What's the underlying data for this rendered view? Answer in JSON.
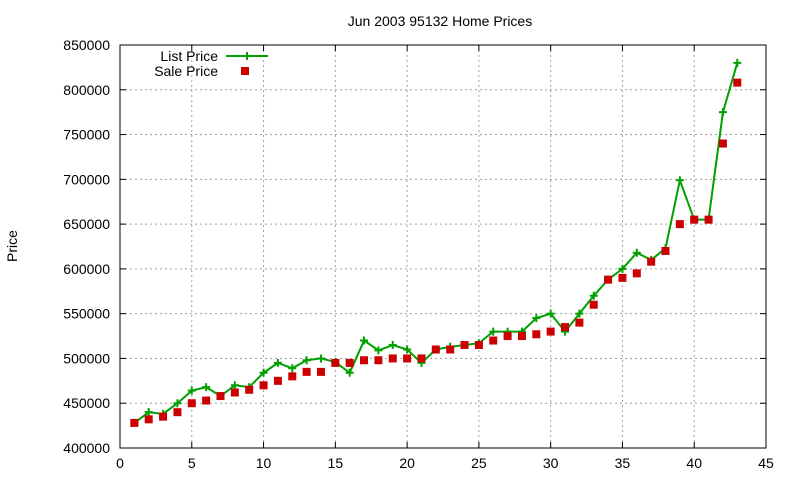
{
  "chart_data": {
    "type": "line",
    "title": "Jun 2003 95132 Home Prices",
    "xlabel": "",
    "ylabel": "Price",
    "xlim": [
      0,
      45
    ],
    "ylim": [
      400000,
      850000
    ],
    "x_ticks": [
      0,
      5,
      10,
      15,
      20,
      25,
      30,
      35,
      40,
      45
    ],
    "y_ticks": [
      400000,
      450000,
      500000,
      550000,
      600000,
      650000,
      700000,
      750000,
      800000,
      850000
    ],
    "grid": true,
    "legend_position": "top-left",
    "series": [
      {
        "name": "List Price",
        "style": "line-with-plus-markers",
        "color": "#00a000",
        "x": [
          1,
          2,
          3,
          4,
          5,
          6,
          7,
          8,
          9,
          10,
          11,
          12,
          13,
          14,
          15,
          16,
          17,
          18,
          19,
          20,
          21,
          22,
          23,
          24,
          25,
          26,
          27,
          28,
          29,
          30,
          31,
          32,
          33,
          34,
          35,
          36,
          37,
          38,
          39,
          40,
          41,
          42,
          43
        ],
        "values": [
          428000,
          440000,
          438000,
          450000,
          464000,
          468000,
          458000,
          470000,
          468000,
          484000,
          495000,
          489000,
          498000,
          500000,
          496000,
          484000,
          520000,
          509000,
          515000,
          510000,
          495000,
          510000,
          513000,
          515000,
          517000,
          530000,
          530000,
          530000,
          545000,
          550000,
          530000,
          550000,
          570000,
          588000,
          600000,
          618000,
          610000,
          623000,
          699000,
          655000,
          655000,
          775000,
          830000
        ]
      },
      {
        "name": "Sale Price",
        "style": "square-markers",
        "color": "#cc0000",
        "x": [
          1,
          2,
          3,
          4,
          5,
          6,
          7,
          8,
          9,
          10,
          11,
          12,
          13,
          14,
          15,
          16,
          17,
          18,
          19,
          20,
          21,
          22,
          23,
          24,
          25,
          26,
          27,
          28,
          29,
          30,
          31,
          32,
          33,
          34,
          35,
          36,
          37,
          38,
          39,
          40,
          41,
          42,
          43
        ],
        "values": [
          428000,
          432000,
          435000,
          440000,
          450000,
          453000,
          458000,
          462000,
          465000,
          470000,
          475000,
          480000,
          485000,
          485000,
          495000,
          495000,
          498000,
          498000,
          500000,
          500000,
          500000,
          510000,
          510000,
          515000,
          515000,
          520000,
          525000,
          525000,
          527000,
          530000,
          535000,
          540000,
          560000,
          588000,
          590000,
          595000,
          608000,
          620000,
          650000,
          655000,
          655000,
          740000,
          808000
        ]
      }
    ]
  }
}
